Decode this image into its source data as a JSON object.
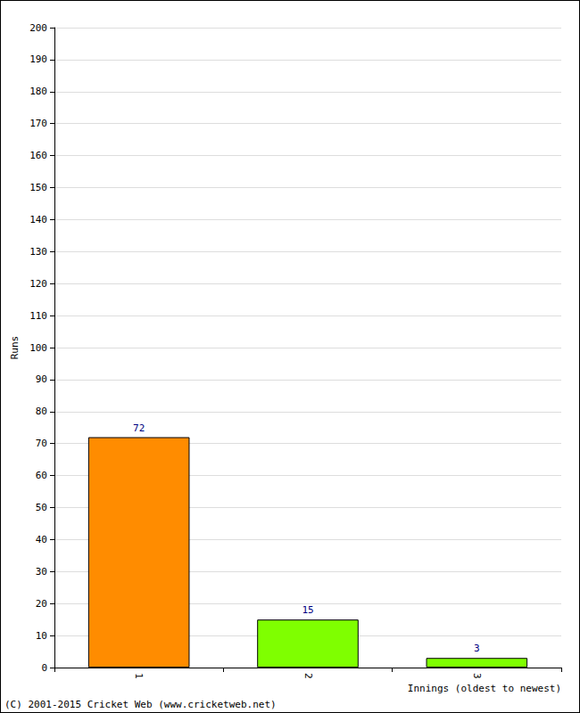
{
  "chart_data": {
    "type": "bar",
    "categories": [
      "1",
      "2",
      "3"
    ],
    "values": [
      72,
      15,
      3
    ],
    "colors": [
      "#ff8c00",
      "#7fff00",
      "#7fff00"
    ],
    "y_label": "Runs",
    "x_label": "Innings (oldest to newest)",
    "annotations": [
      "(C) 2001-2015 Cricket Web (www.cricketweb.net)"
    ],
    "ylim": [
      0,
      200
    ],
    "yticks": [
      0,
      10,
      20,
      30,
      40,
      50,
      60,
      70,
      80,
      90,
      100,
      110,
      120,
      130,
      140,
      150,
      160,
      170,
      180,
      190,
      200
    ],
    "grid": true,
    "data_labels": true
  }
}
